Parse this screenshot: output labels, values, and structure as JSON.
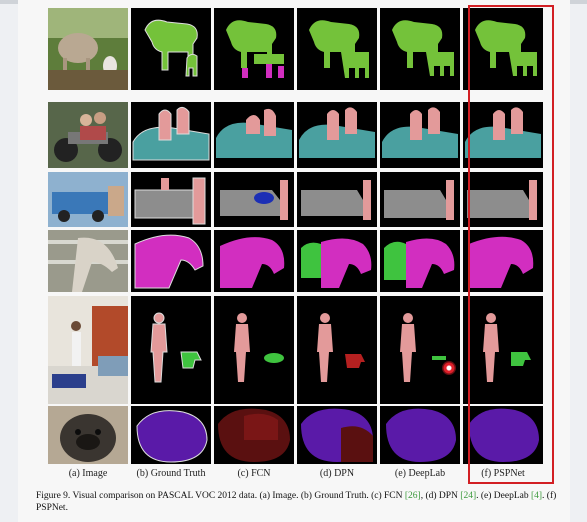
{
  "columns": [
    {
      "id": "image",
      "label": "(a) Image"
    },
    {
      "id": "gt",
      "label": "(b) Ground Truth"
    },
    {
      "id": "fcn",
      "label": "(c) FCN"
    },
    {
      "id": "dpn",
      "label": "(d) DPN"
    },
    {
      "id": "deeplab",
      "label": "(e) DeepLab"
    },
    {
      "id": "pspnet",
      "label": "(f) PSPNet"
    }
  ],
  "rows": [
    "cows",
    "motorbike-people",
    "truck",
    "horse",
    "person-room",
    "dog"
  ],
  "highlighted_column": "pspnet",
  "caption": {
    "prefix": "Figure 9. Visual comparison on PASCAL VOC 2012 data. (a) Image. (b) Ground Truth. (c) FCN ",
    "cite_fcn": "[26]",
    "mid1": ", (d) DPN ",
    "cite_dpn": "[24]",
    "mid2": ". (e) DeepLab ",
    "cite_deeplab": "[4]",
    "suffix": ". (f) PSPNet."
  },
  "colors": {
    "cow": "#74c23a",
    "person": "#e39a9a",
    "motorbike": "#4aa0a0",
    "car": "#8d8d8d",
    "horse": "#d22ec0",
    "plant": "#3fc33f",
    "chair": "#b52020",
    "dog": "#5a1aa8",
    "cat": "#5a1010",
    "highlight": "#d21f24"
  }
}
